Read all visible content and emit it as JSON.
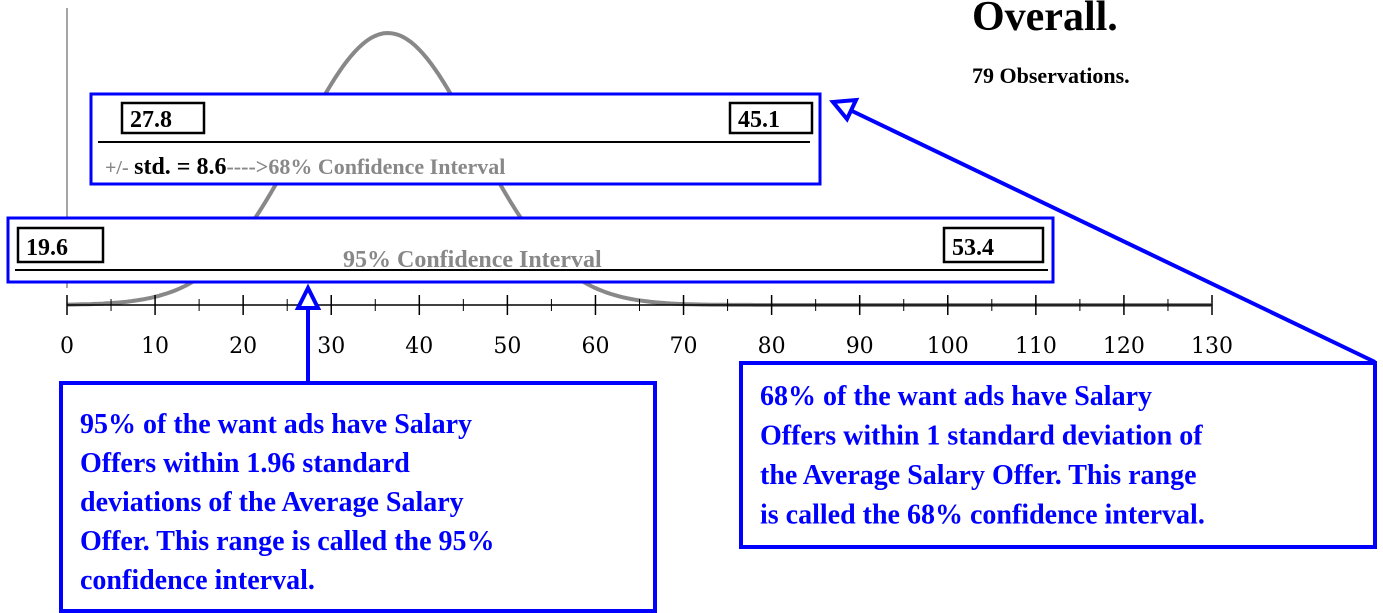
{
  "title": "Overall.",
  "observations": "79 Observations.",
  "axis": {
    "ticks": [
      0,
      10,
      20,
      30,
      40,
      50,
      60,
      70,
      80,
      90,
      100,
      110,
      120,
      130
    ]
  },
  "interval68": {
    "low": "27.8",
    "high": "45.1",
    "prefix": "+/-",
    "std": "std. = 8.6",
    "suffix": "---->68% Confidence Interval"
  },
  "interval95": {
    "low": "19.6",
    "high": "53.4",
    "label": "95% Confidence Interval"
  },
  "callouts": [
    {
      "lines": [
        "95% of the want ads have Salary",
        "Offers within 1.96 standard",
        "deviations of the Average Salary",
        "Offer. This range is called the 95%",
        "confidence interval."
      ]
    },
    {
      "lines": [
        "68% of the want ads have Salary",
        "Offers within 1 standard deviation of",
        "the Average Salary Offer. This range",
        "is called the 68% confidence interval."
      ]
    }
  ]
}
